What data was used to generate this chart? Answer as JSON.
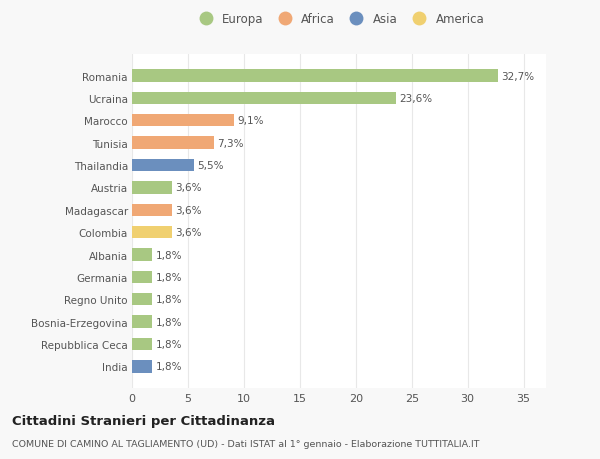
{
  "countries": [
    "Romania",
    "Ucraina",
    "Marocco",
    "Tunisia",
    "Thailandia",
    "Austria",
    "Madagascar",
    "Colombia",
    "Albania",
    "Germania",
    "Regno Unito",
    "Bosnia-Erzegovina",
    "Repubblica Ceca",
    "India"
  ],
  "values": [
    32.7,
    23.6,
    9.1,
    7.3,
    5.5,
    3.6,
    3.6,
    3.6,
    1.8,
    1.8,
    1.8,
    1.8,
    1.8,
    1.8
  ],
  "labels": [
    "32,7%",
    "23,6%",
    "9,1%",
    "7,3%",
    "5,5%",
    "3,6%",
    "3,6%",
    "3,6%",
    "1,8%",
    "1,8%",
    "1,8%",
    "1,8%",
    "1,8%",
    "1,8%"
  ],
  "continents": [
    "Europa",
    "Europa",
    "Africa",
    "Africa",
    "Asia",
    "Europa",
    "Africa",
    "America",
    "Europa",
    "Europa",
    "Europa",
    "Europa",
    "Europa",
    "Asia"
  ],
  "colors": {
    "Europa": "#a8c882",
    "Africa": "#f0a875",
    "Asia": "#6b8fbe",
    "America": "#f0d070"
  },
  "legend_order": [
    "Europa",
    "Africa",
    "Asia",
    "America"
  ],
  "title": "Cittadini Stranieri per Cittadinanza",
  "subtitle": "COMUNE DI CAMINO AL TAGLIAMENTO (UD) - Dati ISTAT al 1° gennaio - Elaborazione TUTTITALIA.IT",
  "xlim": [
    0,
    37
  ],
  "xticks": [
    0,
    5,
    10,
    15,
    20,
    25,
    30,
    35
  ],
  "background_color": "#f8f8f8",
  "plot_background": "#ffffff",
  "grid_color": "#e8e8e8",
  "bar_height": 0.55
}
